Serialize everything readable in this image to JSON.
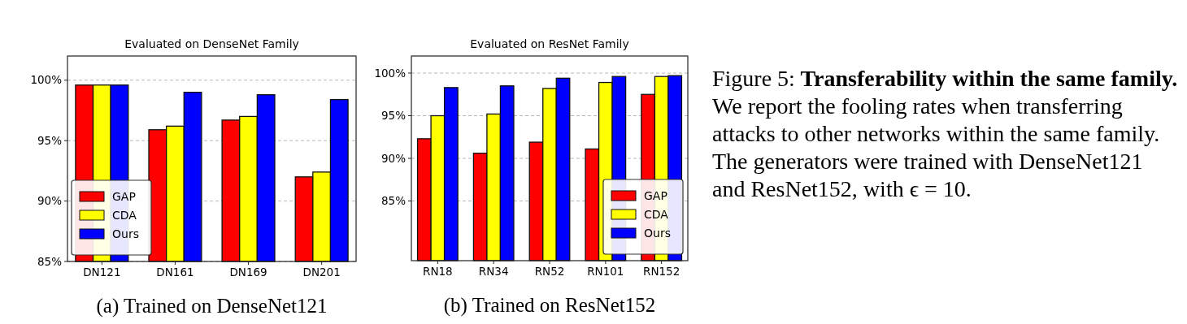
{
  "chart_data": [
    {
      "type": "bar",
      "title": "Evaluated on DenseNet Family",
      "categories": [
        "DN121",
        "DN161",
        "DN169",
        "DN201"
      ],
      "series": [
        {
          "name": "GAP",
          "color": "#ff0000",
          "values": [
            99.6,
            95.9,
            96.7,
            92.0
          ]
        },
        {
          "name": "CDA",
          "color": "#ffff00",
          "values": [
            99.6,
            96.2,
            97.0,
            92.4
          ]
        },
        {
          "name": "Ours",
          "color": "#0000ff",
          "values": [
            99.6,
            99.0,
            98.8,
            98.4
          ]
        }
      ],
      "ylim": [
        85,
        102
      ],
      "yticks": [
        {
          "value": 85,
          "label": "85%"
        },
        {
          "value": 90,
          "label": "90%"
        },
        {
          "value": 95,
          "label": "95%"
        },
        {
          "value": 100,
          "label": "100%"
        }
      ],
      "grid": "y",
      "legend": "bottom left",
      "annotations": [
        "(a) Trained on DenseNet121"
      ]
    },
    {
      "type": "bar",
      "title": "Evaluated on ResNet Family",
      "categories": [
        "RN18",
        "RN34",
        "RN52",
        "RN101",
        "RN152"
      ],
      "series": [
        {
          "name": "GAP",
          "color": "#ff0000",
          "values": [
            92.3,
            90.6,
            91.9,
            91.1,
            97.5
          ]
        },
        {
          "name": "CDA",
          "color": "#ffff00",
          "values": [
            95.0,
            95.2,
            98.2,
            98.9,
            99.6
          ]
        },
        {
          "name": "Ours",
          "color": "#0000ff",
          "values": [
            98.3,
            98.5,
            99.4,
            99.6,
            99.7
          ]
        }
      ],
      "ylim": [
        78,
        102
      ],
      "yticks": [
        {
          "value": 85,
          "label": "85%"
        },
        {
          "value": 90,
          "label": "90%"
        },
        {
          "value": 95,
          "label": "95%"
        },
        {
          "value": 100,
          "label": "100%"
        }
      ],
      "grid": "y",
      "legend": "bottom right",
      "annotations": [
        "(b) Trained on ResNet152"
      ]
    },
    {
      "type": "other",
      "annotations": [
        "Figure 5:",
        "Transferability within the same family.",
        "We report the fooling rates when transferring attacks to other networks within the same family. The generators were trained with DenseNet121 and ResNet152, with ϵ = 10."
      ]
    }
  ]
}
